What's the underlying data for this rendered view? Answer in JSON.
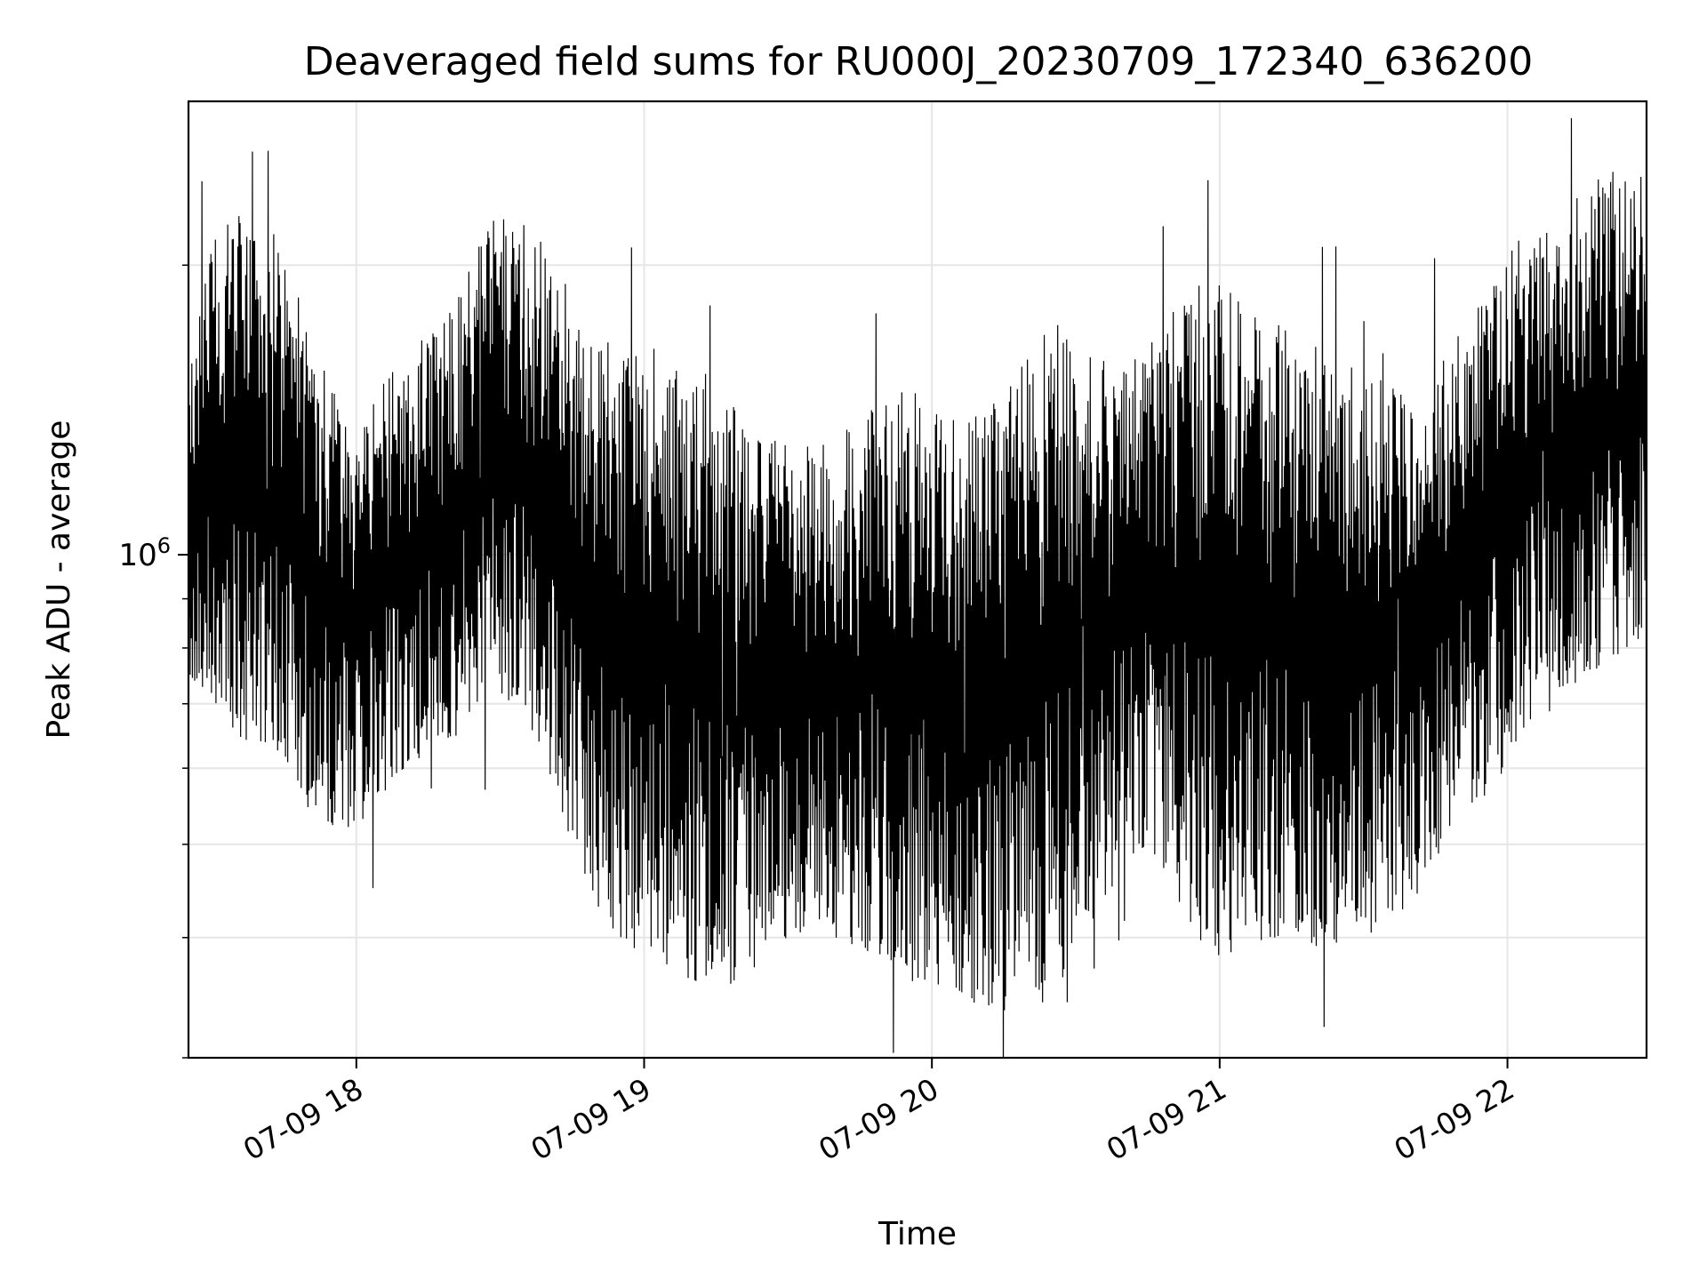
{
  "chart_data": {
    "type": "line",
    "title": "Deaveraged field sums for RU000J_20230709_172340_636200",
    "xlabel": "Time",
    "ylabel": "Peak ADU - average",
    "x_ticks": [
      "07-09 18",
      "07-09 19",
      "07-09 20",
      "07-09 21",
      "07-09 22"
    ],
    "y_tick_labels": [
      {
        "base": "10",
        "exp": "6"
      }
    ],
    "xlim": [
      "2023-07-09 17:25",
      "2023-07-09 22:29"
    ],
    "ylim": [
      300000,
      2960000
    ],
    "y_scale": "log",
    "grid": true,
    "line_color": "#000000",
    "series": [
      {
        "x": [
          "2023-07-09 17:25",
          "2023-07-09 17:30",
          "2023-07-09 17:35",
          "2023-07-09 17:40",
          "2023-07-09 17:45",
          "2023-07-09 17:50",
          "2023-07-09 17:55",
          "2023-07-09 18:00",
          "2023-07-09 18:05",
          "2023-07-09 18:10",
          "2023-07-09 18:15",
          "2023-07-09 18:20",
          "2023-07-09 18:25",
          "2023-07-09 18:30",
          "2023-07-09 18:35",
          "2023-07-09 18:40",
          "2023-07-09 18:45",
          "2023-07-09 18:50",
          "2023-07-09 18:55",
          "2023-07-09 19:00",
          "2023-07-09 19:05",
          "2023-07-09 19:10",
          "2023-07-09 19:15",
          "2023-07-09 19:20",
          "2023-07-09 19:25",
          "2023-07-09 19:30",
          "2023-07-09 19:35",
          "2023-07-09 19:40",
          "2023-07-09 19:45",
          "2023-07-09 19:50",
          "2023-07-09 19:55",
          "2023-07-09 20:00",
          "2023-07-09 20:05",
          "2023-07-09 20:10",
          "2023-07-09 20:15",
          "2023-07-09 20:20",
          "2023-07-09 20:25",
          "2023-07-09 20:30",
          "2023-07-09 20:35",
          "2023-07-09 20:40",
          "2023-07-09 20:45",
          "2023-07-09 20:50",
          "2023-07-09 20:55",
          "2023-07-09 21:00",
          "2023-07-09 21:05",
          "2023-07-09 21:10",
          "2023-07-09 21:15",
          "2023-07-09 21:20",
          "2023-07-09 21:25",
          "2023-07-09 21:30",
          "2023-07-09 21:35",
          "2023-07-09 21:40",
          "2023-07-09 21:45",
          "2023-07-09 21:50",
          "2023-07-09 21:55",
          "2023-07-09 22:00",
          "2023-07-09 22:05",
          "2023-07-09 22:10",
          "2023-07-09 22:15",
          "2023-07-09 22:20",
          "2023-07-09 22:25"
        ],
        "low": [
          750000,
          700000,
          650000,
          620000,
          600000,
          560000,
          520000,
          520000,
          560000,
          600000,
          620000,
          650000,
          700000,
          720000,
          680000,
          600000,
          500000,
          430000,
          400000,
          380000,
          370000,
          360000,
          350000,
          360000,
          380000,
          400000,
          410000,
          400000,
          390000,
          380000,
          360000,
          360000,
          350000,
          340000,
          330000,
          330000,
          350000,
          380000,
          420000,
          480000,
          500000,
          440000,
          400000,
          380000,
          390000,
          400000,
          400000,
          390000,
          390000,
          400000,
          410000,
          430000,
          480000,
          540000,
          560000,
          600000,
          650000,
          700000,
          740000,
          770000,
          790000
        ],
        "high": [
          1500000,
          2200000,
          2300000,
          2250000,
          2100000,
          1700000,
          1500000,
          1300000,
          1500000,
          1600000,
          1700000,
          1800000,
          2100000,
          2300000,
          2250000,
          2100000,
          1900000,
          1700000,
          1650000,
          1600000,
          1700000,
          1600000,
          1500000,
          1400000,
          1350000,
          1300000,
          1300000,
          1320000,
          1400000,
          1450000,
          1500000,
          1450000,
          1400000,
          1450000,
          1500000,
          1600000,
          1750000,
          1700000,
          1600000,
          1550000,
          1700000,
          1800000,
          1900000,
          2000000,
          1900000,
          1800000,
          1750000,
          1700000,
          1650000,
          1600000,
          1500000,
          1450000,
          1550000,
          1700000,
          1900000,
          2100000,
          2200000,
          2200000,
          2400000,
          2500000,
          2500000
        ]
      }
    ]
  }
}
